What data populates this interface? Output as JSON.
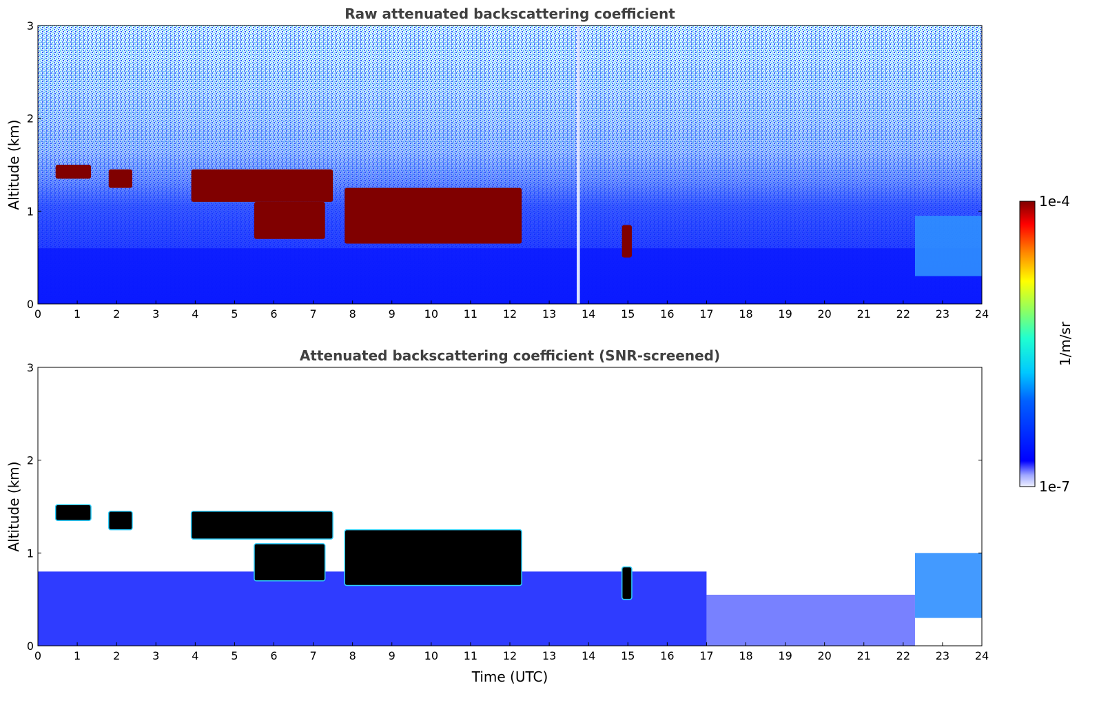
{
  "chart_data": [
    {
      "type": "heatmap",
      "title": "Raw attenuated backscattering coefficient",
      "xlabel": "",
      "ylabel": "Altitude (km)",
      "xlim": [
        0,
        24
      ],
      "ylim": [
        0,
        3
      ],
      "xticks": [
        "0",
        "1",
        "2",
        "3",
        "4",
        "5",
        "6",
        "7",
        "8",
        "9",
        "10",
        "11",
        "12",
        "13",
        "14",
        "15",
        "16",
        "17",
        "18",
        "19",
        "20",
        "21",
        "22",
        "23",
        "24"
      ],
      "yticks": [
        "0",
        "1",
        "2",
        "3"
      ],
      "features": [
        {
          "desc": "dense aerosol layer",
          "x": [
            0,
            24
          ],
          "y": [
            0,
            0.6
          ],
          "level": "medium"
        },
        {
          "desc": "cloud",
          "x": [
            0.45,
            1.35
          ],
          "y": [
            1.35,
            1.5
          ],
          "level": "high"
        },
        {
          "desc": "cloud",
          "x": [
            1.8,
            2.4
          ],
          "y": [
            1.25,
            1.45
          ],
          "level": "high"
        },
        {
          "desc": "cloud",
          "x": [
            3.9,
            7.5
          ],
          "y": [
            1.1,
            1.45
          ],
          "level": "high"
        },
        {
          "desc": "cloud",
          "x": [
            5.5,
            7.3
          ],
          "y": [
            0.7,
            1.1
          ],
          "level": "high"
        },
        {
          "desc": "cloud",
          "x": [
            7.8,
            12.3
          ],
          "y": [
            0.65,
            1.25
          ],
          "level": "high"
        },
        {
          "desc": "cloud",
          "x": [
            14.85,
            15.1
          ],
          "y": [
            0.5,
            0.85
          ],
          "level": "high"
        },
        {
          "desc": "aerosol plume",
          "x": [
            22.3,
            24
          ],
          "y": [
            0.3,
            0.95
          ],
          "level": "medium"
        },
        {
          "desc": "data gap",
          "x": [
            13.7,
            13.78
          ],
          "y": [
            0,
            3
          ],
          "level": "none"
        }
      ]
    },
    {
      "type": "heatmap",
      "title": "Attenuated backscattering coefficient (SNR-screened)",
      "xlabel": "Time (UTC)",
      "ylabel": "Altitude (km)",
      "xlim": [
        0,
        24
      ],
      "ylim": [
        0,
        3
      ],
      "xticks": [
        "0",
        "1",
        "2",
        "3",
        "4",
        "5",
        "6",
        "7",
        "8",
        "9",
        "10",
        "11",
        "12",
        "13",
        "14",
        "15",
        "16",
        "17",
        "18",
        "19",
        "20",
        "21",
        "22",
        "23",
        "24"
      ],
      "yticks": [
        "0",
        "1",
        "2",
        "3"
      ],
      "features": [
        {
          "desc": "boundary layer",
          "x": [
            0,
            17
          ],
          "y": [
            0,
            0.8
          ],
          "level": "medium"
        },
        {
          "desc": "screened boundary layer",
          "x": [
            17,
            22.3
          ],
          "y": [
            0,
            0.55
          ],
          "level": "medium"
        },
        {
          "desc": "cloud",
          "x": [
            0.45,
            1.35
          ],
          "y": [
            1.35,
            1.52
          ],
          "level": "saturated"
        },
        {
          "desc": "cloud",
          "x": [
            1.8,
            2.4
          ],
          "y": [
            1.25,
            1.45
          ],
          "level": "saturated"
        },
        {
          "desc": "cloud",
          "x": [
            3.9,
            7.5
          ],
          "y": [
            1.15,
            1.45
          ],
          "level": "saturated"
        },
        {
          "desc": "cloud",
          "x": [
            5.5,
            7.3
          ],
          "y": [
            0.7,
            1.1
          ],
          "level": "saturated"
        },
        {
          "desc": "cloud",
          "x": [
            7.8,
            12.3
          ],
          "y": [
            0.65,
            1.25
          ],
          "level": "saturated"
        },
        {
          "desc": "cloud",
          "x": [
            14.85,
            15.1
          ],
          "y": [
            0.5,
            0.85
          ],
          "level": "saturated"
        },
        {
          "desc": "aerosol plume",
          "x": [
            22.3,
            24
          ],
          "y": [
            0.3,
            1.0
          ],
          "level": "medium"
        }
      ]
    }
  ],
  "colorbar": {
    "label": "1/m/sr",
    "max_label": "1e-4",
    "min_label": "1e-7",
    "colormap": "jet"
  },
  "colors": {
    "low": "#0a1aff",
    "mid": "#2bb3ff",
    "high": "#800000",
    "saturated": "#000000"
  }
}
